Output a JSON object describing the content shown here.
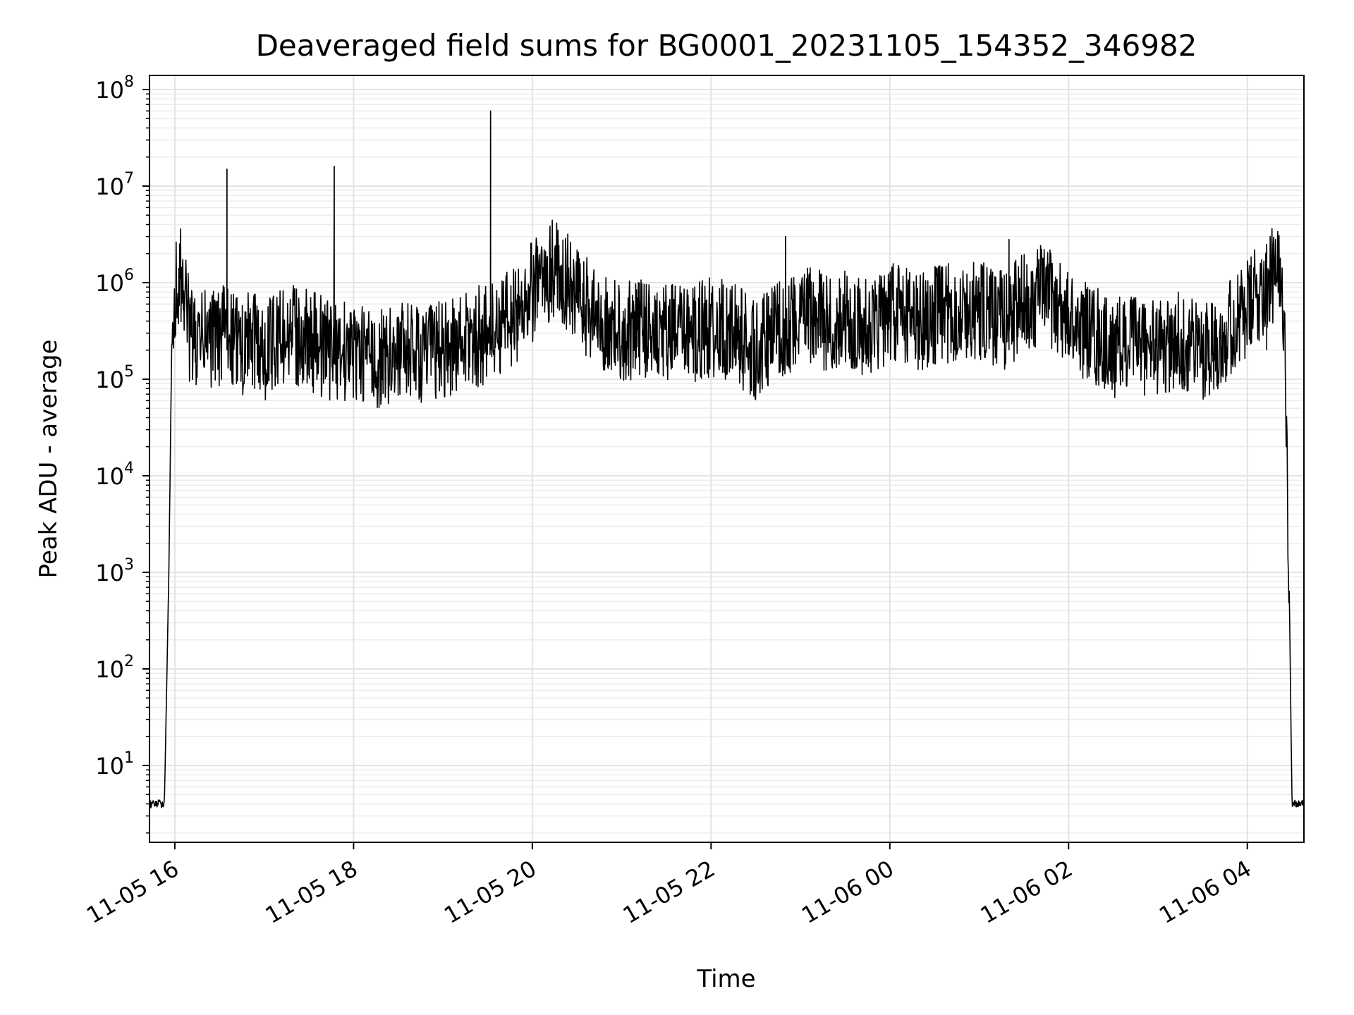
{
  "chart_data": {
    "type": "line",
    "title": "Deaveraged field sums for BG0001_20231105_154352_346982",
    "xlabel": "Time",
    "ylabel": "Peak ADU - average",
    "yscale": "log",
    "ylim": [
      1.6,
      140000000
    ],
    "xlim": [
      "2023-11-05 15:43",
      "2023-11-06 04:38"
    ],
    "grid": true,
    "x_ticks": [
      "11-05 16",
      "11-05 18",
      "11-05 20",
      "11-05 22",
      "11-06 00",
      "11-06 02",
      "11-06 04"
    ],
    "y_ticks": [
      {
        "base": "10",
        "exp": "1"
      },
      {
        "base": "10",
        "exp": "2"
      },
      {
        "base": "10",
        "exp": "3"
      },
      {
        "base": "10",
        "exp": "4"
      },
      {
        "base": "10",
        "exp": "5"
      },
      {
        "base": "10",
        "exp": "6"
      },
      {
        "base": "10",
        "exp": "7"
      },
      {
        "base": "10",
        "exp": "8"
      }
    ],
    "series": [
      {
        "color": "#000000",
        "x": [
          "2023-11-05 15:43",
          "2023-11-05 15:50",
          "2023-11-05 15:53",
          "2023-11-05 15:56",
          "2023-11-05 15:58",
          "2023-11-05 16:00",
          "2023-11-05 16:05",
          "2023-11-05 16:10",
          "2023-11-05 16:15",
          "2023-11-05 16:20",
          "2023-11-05 16:25",
          "2023-11-05 16:35",
          "2023-11-05 16:45",
          "2023-11-05 16:50",
          "2023-11-05 17:00",
          "2023-11-05 17:15",
          "2023-11-05 17:30",
          "2023-11-05 17:45",
          "2023-11-05 18:00",
          "2023-11-05 18:15",
          "2023-11-05 18:30",
          "2023-11-05 18:45",
          "2023-11-05 19:00",
          "2023-11-05 19:15",
          "2023-11-05 19:30",
          "2023-11-05 19:45",
          "2023-11-05 20:00",
          "2023-11-05 20:15",
          "2023-11-05 20:30",
          "2023-11-05 20:45",
          "2023-11-05 21:00",
          "2023-11-05 21:15",
          "2023-11-05 21:30",
          "2023-11-05 21:45",
          "2023-11-05 22:00",
          "2023-11-05 22:15",
          "2023-11-05 22:30",
          "2023-11-05 22:45",
          "2023-11-05 23:00",
          "2023-11-05 23:15",
          "2023-11-05 23:30",
          "2023-11-05 23:45",
          "2023-11-06 00:00",
          "2023-11-06 00:15",
          "2023-11-06 00:30",
          "2023-11-06 00:45",
          "2023-11-06 01:00",
          "2023-11-06 01:15",
          "2023-11-06 01:30",
          "2023-11-06 01:45",
          "2023-11-06 02:00",
          "2023-11-06 02:15",
          "2023-11-06 02:30",
          "2023-11-06 02:45",
          "2023-11-06 03:00",
          "2023-11-06 03:15",
          "2023-11-06 03:30",
          "2023-11-06 03:45",
          "2023-11-06 04:00",
          "2023-11-06 04:10",
          "2023-11-06 04:20",
          "2023-11-06 04:25",
          "2023-11-06 04:28",
          "2023-11-06 04:30",
          "2023-11-06 04:38"
        ],
        "y": [
          4,
          4,
          4,
          1000,
          300000,
          800000,
          1200000,
          300000,
          200000,
          300000,
          250000,
          300000,
          200000,
          250000,
          200000,
          300000,
          250000,
          200000,
          200000,
          150000,
          200000,
          180000,
          200000,
          250000,
          300000,
          400000,
          800000,
          1500000,
          700000,
          400000,
          300000,
          350000,
          300000,
          300000,
          350000,
          300000,
          200000,
          300000,
          500000,
          400000,
          400000,
          350000,
          500000,
          400000,
          450000,
          500000,
          500000,
          400000,
          600000,
          800000,
          400000,
          300000,
          200000,
          250000,
          200000,
          250000,
          200000,
          300000,
          500000,
          900000,
          1200000,
          600000,
          1000,
          4,
          4
        ]
      }
    ],
    "spikes": [
      {
        "x": "2023-11-05 16:35",
        "y": 15000000
      },
      {
        "x": "2023-11-05 17:47",
        "y": 16000000
      },
      {
        "x": "2023-11-05 19:32",
        "y": 60000000
      },
      {
        "x": "2023-11-05 22:50",
        "y": 3000000
      },
      {
        "x": "2023-11-06 01:20",
        "y": 2800000
      },
      {
        "x": "2023-11-06 04:13",
        "y": 2500000
      }
    ]
  }
}
